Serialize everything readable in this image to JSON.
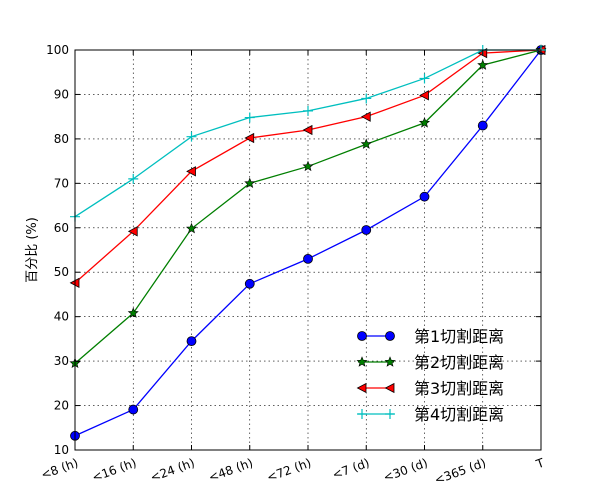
{
  "chart_data": {
    "type": "line",
    "title": "",
    "xlabel": "",
    "ylabel": "百分比 (%)",
    "ylim": [
      10,
      100
    ],
    "yticks": [
      10,
      20,
      30,
      40,
      50,
      60,
      70,
      80,
      90,
      100
    ],
    "categories": [
      "<8 (h)",
      "<16 (h)",
      "<24 (h)",
      "<48 (h)",
      "<72 (h)",
      "<7 (d)",
      "<30 (d)",
      "<365 (d)",
      "T"
    ],
    "grid": true,
    "legend_position": "lower-right",
    "series": [
      {
        "name": "第1切割距离",
        "color": "#0000ff",
        "marker": "circle",
        "values": [
          13.2,
          19.1,
          34.5,
          47.4,
          53.0,
          59.5,
          67.0,
          83.0,
          100
        ]
      },
      {
        "name": "第2切割距离",
        "color": "#007f00",
        "marker": "star",
        "values": [
          29.5,
          40.8,
          59.8,
          70.0,
          73.8,
          78.8,
          83.6,
          96.6,
          100
        ]
      },
      {
        "name": "第3切割距离",
        "color": "#ff0000",
        "marker": "triangle-left",
        "values": [
          47.6,
          59.2,
          72.7,
          80.2,
          82.0,
          85.0,
          89.8,
          99.3,
          100
        ]
      },
      {
        "name": "第4切割距离",
        "color": "#00bfbf",
        "marker": "plus",
        "values": [
          62.5,
          71.0,
          80.5,
          84.8,
          86.3,
          89.1,
          93.6,
          100,
          100
        ]
      }
    ]
  }
}
